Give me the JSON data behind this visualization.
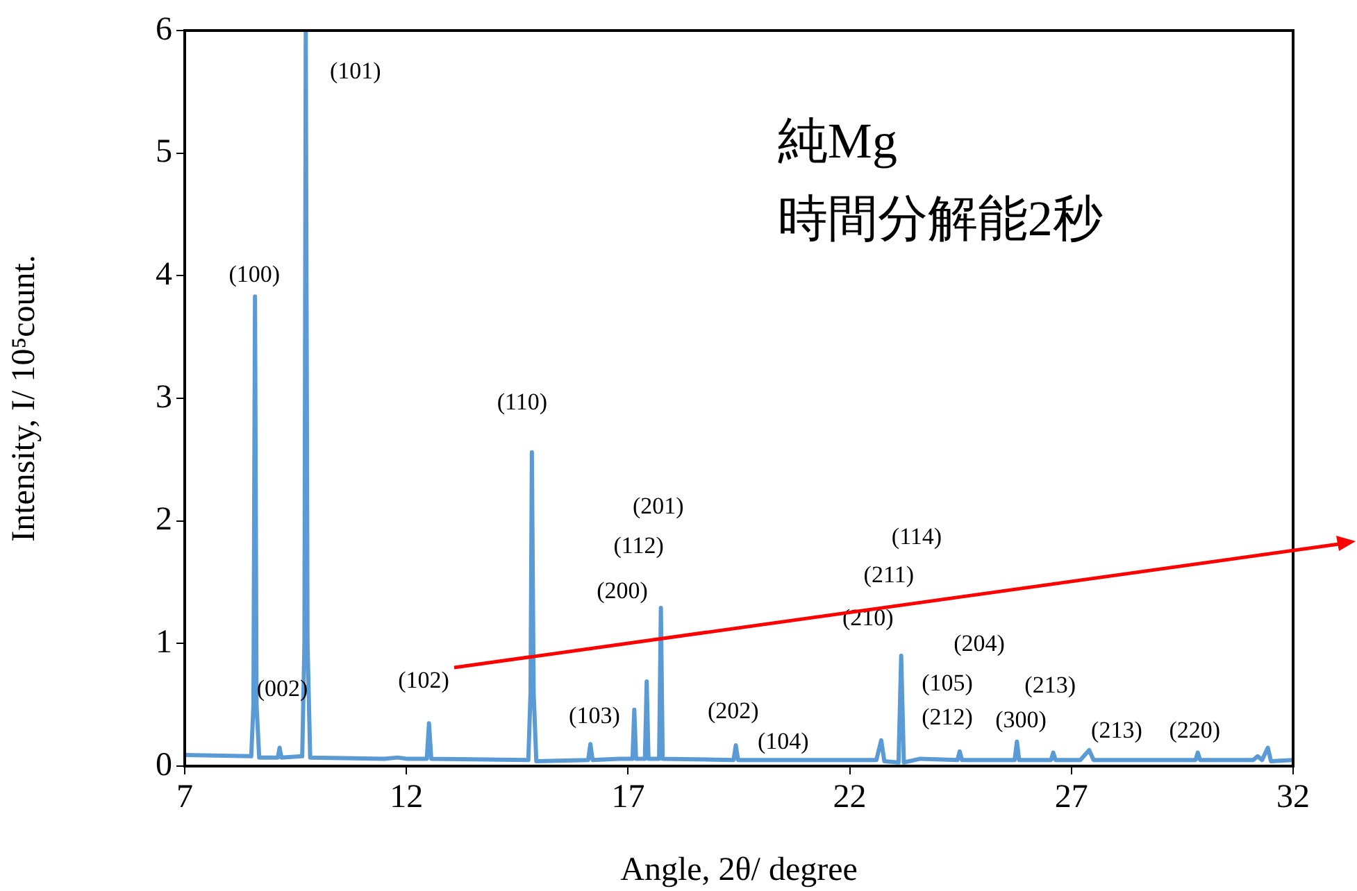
{
  "chart_data": {
    "type": "line",
    "xlabel": "Angle, 2θ/ degree",
    "ylabel": "Intensity, I/ 10⁵count.",
    "xlim": [
      7,
      32
    ],
    "xticks": [
      7,
      12,
      17,
      22,
      27,
      32
    ],
    "ylim": [
      0,
      6
    ],
    "yticks": [
      0,
      1,
      2,
      3,
      4,
      5,
      6
    ],
    "grid": false,
    "legend": false,
    "marker": "none",
    "line_style": "solid",
    "series": [
      {
        "color": "#5b9bd5",
        "x": [
          7,
          8.5,
          8.55,
          8.585,
          8.62,
          8.68,
          9.1,
          9.14,
          9.18,
          9.65,
          9.7,
          9.73,
          9.77,
          9.83,
          11.5,
          11.8,
          12.0,
          12.46,
          12.51,
          12.56,
          14.75,
          14.8,
          14.83,
          14.87,
          14.93,
          16.1,
          16.15,
          16.2,
          16.8,
          17.1,
          17.14,
          17.18,
          17.38,
          17.42,
          17.46,
          17.7,
          17.74,
          17.78,
          19.38,
          19.43,
          19.48,
          22.6,
          22.71,
          22.78,
          23.1,
          23.16,
          23.22,
          23.59,
          24.43,
          24.48,
          24.53,
          25.72,
          25.77,
          25.82,
          26.54,
          26.59,
          26.64,
          27.2,
          27.4,
          27.5,
          29.8,
          29.85,
          29.9,
          31.1,
          31.2,
          31.3,
          31.43,
          31.5,
          32
        ],
        "values": [
          0.09,
          0.08,
          0.5,
          3.83,
          0.5,
          0.07,
          0.07,
          0.15,
          0.07,
          0.08,
          1.0,
          6.0,
          1.0,
          0.07,
          0.06,
          0.07,
          0.06,
          0.06,
          0.35,
          0.06,
          0.05,
          0.6,
          2.56,
          0.6,
          0.04,
          0.05,
          0.18,
          0.05,
          0.06,
          0.06,
          0.46,
          0.06,
          0.06,
          0.69,
          0.06,
          0.06,
          1.29,
          0.06,
          0.05,
          0.17,
          0.05,
          0.05,
          0.21,
          0.04,
          0.03,
          0.9,
          0.03,
          0.06,
          0.05,
          0.12,
          0.05,
          0.05,
          0.2,
          0.05,
          0.05,
          0.11,
          0.05,
          0.05,
          0.13,
          0.05,
          0.05,
          0.11,
          0.05,
          0.05,
          0.08,
          0.05,
          0.15,
          0.04,
          0.05
        ]
      }
    ],
    "annotations": [
      "純Mg",
      "時間分解能2秒",
      "(100)",
      "(101)",
      "(002)",
      "(102)",
      "(110)",
      "(103)",
      "(201)",
      "(112)",
      "(200)",
      "(202)",
      "(104)",
      "(114)",
      "(211)",
      "(210)",
      "(204)",
      "(105)",
      "(212)",
      "(213)",
      "(300)",
      "(213)",
      "(220)"
    ]
  }
}
